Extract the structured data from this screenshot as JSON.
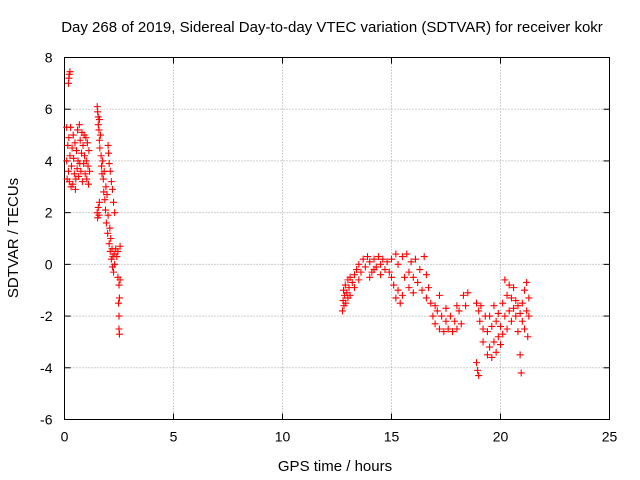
{
  "chart_data": {
    "type": "scatter",
    "title": "Day 268 of 2019, Sidereal Day-to-day VTEC variation (SDTVAR) for receiver kokr",
    "xlabel": "GPS time / hours",
    "ylabel": "SDTVAR / TECUs",
    "xlim": [
      0,
      25
    ],
    "ylim": [
      -6,
      8
    ],
    "xticks": [
      0,
      5,
      10,
      15,
      20,
      25
    ],
    "yticks": [
      -6,
      -4,
      -2,
      0,
      2,
      4,
      6,
      8
    ],
    "xtick_labels": [
      "0",
      "5",
      "10",
      "15",
      "20",
      "25"
    ],
    "ytick_labels": [
      "-6",
      "-4",
      "-2",
      "0",
      "2",
      "4",
      "6",
      "8"
    ],
    "grid": true,
    "marker": "+",
    "color": "#ff0000",
    "series": [
      {
        "name": "SDTVAR",
        "points": [
          [
            0.18,
            7.0
          ],
          [
            0.2,
            7.2
          ],
          [
            0.22,
            7.35
          ],
          [
            0.25,
            7.45
          ],
          [
            0.1,
            5.3
          ],
          [
            0.1,
            4.0
          ],
          [
            0.12,
            3.3
          ],
          [
            0.15,
            4.6
          ],
          [
            0.18,
            3.6
          ],
          [
            0.2,
            4.9
          ],
          [
            0.22,
            3.2
          ],
          [
            0.25,
            4.2
          ],
          [
            0.28,
            5.3
          ],
          [
            0.3,
            3.0
          ],
          [
            0.32,
            3.8
          ],
          [
            0.35,
            4.5
          ],
          [
            0.38,
            3.1
          ],
          [
            0.4,
            5.0
          ],
          [
            0.42,
            4.1
          ],
          [
            0.45,
            3.5
          ],
          [
            0.48,
            4.7
          ],
          [
            0.5,
            2.9
          ],
          [
            0.52,
            3.3
          ],
          [
            0.55,
            4.4
          ],
          [
            0.58,
            3.7
          ],
          [
            0.6,
            5.2
          ],
          [
            0.62,
            4.0
          ],
          [
            0.65,
            3.4
          ],
          [
            0.68,
            5.4
          ],
          [
            0.7,
            3.9
          ],
          [
            0.72,
            4.8
          ],
          [
            0.75,
            3.6
          ],
          [
            0.78,
            4.3
          ],
          [
            0.8,
            5.1
          ],
          [
            0.82,
            3.2
          ],
          [
            0.85,
            4.6
          ],
          [
            0.88,
            3.9
          ],
          [
            0.9,
            5.0
          ],
          [
            0.92,
            4.2
          ],
          [
            0.95,
            3.5
          ],
          [
            0.98,
            4.9
          ],
          [
            1.0,
            4.0
          ],
          [
            1.02,
            3.3
          ],
          [
            1.05,
            4.7
          ],
          [
            1.08,
            3.8
          ],
          [
            1.1,
            3.1
          ],
          [
            1.12,
            4.4
          ],
          [
            1.15,
            3.6
          ],
          [
            1.5,
            6.1
          ],
          [
            1.52,
            5.9
          ],
          [
            1.55,
            5.7
          ],
          [
            1.55,
            5.4
          ],
          [
            1.58,
            5.2
          ],
          [
            1.6,
            5.6
          ],
          [
            1.6,
            4.8
          ],
          [
            1.62,
            4.5
          ],
          [
            1.65,
            5.0
          ],
          [
            1.68,
            4.2
          ],
          [
            1.7,
            3.8
          ],
          [
            1.72,
            3.5
          ],
          [
            1.5,
            2.0
          ],
          [
            1.52,
            1.8
          ],
          [
            1.55,
            2.2
          ],
          [
            1.58,
            1.9
          ],
          [
            1.6,
            2.4
          ],
          [
            1.75,
            4.0
          ],
          [
            1.78,
            3.3
          ],
          [
            1.8,
            2.8
          ],
          [
            1.82,
            3.6
          ],
          [
            1.85,
            2.5
          ],
          [
            1.88,
            2.1
          ],
          [
            1.9,
            3.0
          ],
          [
            1.92,
            1.6
          ],
          [
            1.95,
            2.7
          ],
          [
            1.98,
            1.2
          ],
          [
            2.0,
            1.9
          ],
          [
            2.0,
            4.6
          ],
          [
            2.02,
            4.3
          ],
          [
            2.05,
            3.9
          ],
          [
            2.05,
            0.8
          ],
          [
            2.08,
            1.4
          ],
          [
            2.1,
            0.5
          ],
          [
            2.1,
            3.6
          ],
          [
            2.12,
            1.0
          ],
          [
            2.15,
            0.2
          ],
          [
            2.15,
            3.2
          ],
          [
            2.18,
            0.6
          ],
          [
            2.2,
            -0.1
          ],
          [
            2.2,
            2.9
          ],
          [
            2.22,
            0.3
          ],
          [
            2.25,
            2.4
          ],
          [
            2.25,
            -0.3
          ],
          [
            2.28,
            0.4
          ],
          [
            2.3,
            2.0
          ],
          [
            2.3,
            0.0
          ],
          [
            2.35,
            0.6
          ],
          [
            2.4,
            0.3
          ],
          [
            2.45,
            -0.5
          ],
          [
            2.45,
            0.5
          ],
          [
            2.48,
            -1.5
          ],
          [
            2.5,
            -0.8
          ],
          [
            2.5,
            -2.0
          ],
          [
            2.52,
            -1.3
          ],
          [
            2.5,
            -2.5
          ],
          [
            2.52,
            -2.7
          ],
          [
            2.55,
            0.7
          ],
          [
            2.55,
            -0.6
          ],
          [
            12.75,
            -1.8
          ],
          [
            12.78,
            -1.4
          ],
          [
            12.8,
            -1.0
          ],
          [
            12.82,
            -1.6
          ],
          [
            12.85,
            -1.2
          ],
          [
            12.88,
            -0.8
          ],
          [
            12.9,
            -1.5
          ],
          [
            12.95,
            -1.1
          ],
          [
            13.0,
            -0.6
          ],
          [
            13.0,
            -1.3
          ],
          [
            13.05,
            -0.9
          ],
          [
            13.1,
            -0.5
          ],
          [
            13.1,
            -1.2
          ],
          [
            13.2,
            -0.7
          ],
          [
            13.3,
            -0.4
          ],
          [
            13.3,
            -0.9
          ],
          [
            13.4,
            -0.2
          ],
          [
            13.5,
            -0.6
          ],
          [
            13.5,
            0.0
          ],
          [
            13.6,
            -0.3
          ],
          [
            13.7,
            0.2
          ],
          [
            13.8,
            -0.1
          ],
          [
            13.9,
            0.3
          ],
          [
            14.0,
            0.1
          ],
          [
            14.0,
            -0.5
          ],
          [
            14.1,
            -0.3
          ],
          [
            14.2,
            0.2
          ],
          [
            14.2,
            -0.2
          ],
          [
            14.3,
            -0.1
          ],
          [
            14.4,
            0.3
          ],
          [
            14.5,
            0.0
          ],
          [
            14.5,
            -0.4
          ],
          [
            14.6,
            0.2
          ],
          [
            14.7,
            -0.2
          ],
          [
            14.8,
            0.1
          ],
          [
            14.9,
            -0.3
          ],
          [
            15.0,
            0.2
          ],
          [
            15.0,
            -0.5
          ],
          [
            15.1,
            -0.8
          ],
          [
            15.2,
            0.4
          ],
          [
            15.2,
            -1.3
          ],
          [
            15.3,
            -1.0
          ],
          [
            15.3,
            0.0
          ],
          [
            15.4,
            -1.5
          ],
          [
            15.5,
            0.3
          ],
          [
            15.5,
            -1.2
          ],
          [
            15.6,
            -0.5
          ],
          [
            15.7,
            0.4
          ],
          [
            15.8,
            -0.3
          ],
          [
            15.8,
            -0.9
          ],
          [
            15.9,
            0.1
          ],
          [
            16.0,
            -0.5
          ],
          [
            16.0,
            -1.1
          ],
          [
            16.1,
            0.2
          ],
          [
            16.2,
            -0.7
          ],
          [
            16.3,
            -0.2
          ],
          [
            16.4,
            -1.0
          ],
          [
            16.5,
            0.3
          ],
          [
            16.6,
            -0.4
          ],
          [
            16.6,
            -1.3
          ],
          [
            16.7,
            -0.9
          ],
          [
            16.8,
            -1.5
          ],
          [
            16.9,
            -2.0
          ],
          [
            17.0,
            -1.6
          ],
          [
            17.0,
            -2.3
          ],
          [
            17.1,
            -1.8
          ],
          [
            17.2,
            -2.5
          ],
          [
            17.2,
            -1.2
          ],
          [
            17.3,
            -2.0
          ],
          [
            17.4,
            -2.6
          ],
          [
            17.5,
            -1.7
          ],
          [
            17.5,
            -2.2
          ],
          [
            17.6,
            -2.5
          ],
          [
            17.7,
            -2.0
          ],
          [
            17.8,
            -2.6
          ],
          [
            17.9,
            -2.2
          ],
          [
            18.0,
            -1.6
          ],
          [
            18.0,
            -2.5
          ],
          [
            18.1,
            -1.8
          ],
          [
            18.2,
            -2.3
          ],
          [
            18.3,
            -1.2
          ],
          [
            18.4,
            -1.6
          ],
          [
            18.5,
            -1.1
          ],
          [
            18.9,
            -3.8
          ],
          [
            18.95,
            -4.1
          ],
          [
            19.0,
            -4.3
          ],
          [
            18.9,
            -1.5
          ],
          [
            19.0,
            -1.8
          ],
          [
            19.05,
            -2.2
          ],
          [
            19.1,
            -1.6
          ],
          [
            19.2,
            -2.5
          ],
          [
            19.2,
            -3.0
          ],
          [
            19.3,
            -2.0
          ],
          [
            19.4,
            -3.5
          ],
          [
            19.4,
            -2.6
          ],
          [
            19.5,
            -3.2
          ],
          [
            19.5,
            -2.0
          ],
          [
            19.6,
            -3.6
          ],
          [
            19.6,
            -2.4
          ],
          [
            19.7,
            -3.0
          ],
          [
            19.7,
            -1.6
          ],
          [
            19.8,
            -3.4
          ],
          [
            19.8,
            -2.2
          ],
          [
            19.9,
            -2.8
          ],
          [
            19.9,
            -1.9
          ],
          [
            20.0,
            -3.1
          ],
          [
            20.0,
            -2.4
          ],
          [
            20.1,
            -1.5
          ],
          [
            20.1,
            -2.7
          ],
          [
            20.2,
            -2.0
          ],
          [
            20.2,
            -0.6
          ],
          [
            20.3,
            -1.2
          ],
          [
            20.3,
            -2.5
          ],
          [
            20.4,
            -0.8
          ],
          [
            20.4,
            -1.8
          ],
          [
            20.5,
            -1.3
          ],
          [
            20.5,
            -2.2
          ],
          [
            20.6,
            -1.7
          ],
          [
            20.6,
            -0.9
          ],
          [
            20.7,
            -2.0
          ],
          [
            20.7,
            -1.4
          ],
          [
            20.8,
            -2.6
          ],
          [
            20.8,
            -1.6
          ],
          [
            20.9,
            -1.9
          ],
          [
            20.9,
            -3.5
          ],
          [
            20.95,
            -4.2
          ],
          [
            21.0,
            -1.5
          ],
          [
            21.0,
            -2.2
          ],
          [
            21.1,
            -1.0
          ],
          [
            21.1,
            -2.5
          ],
          [
            21.2,
            -0.7
          ],
          [
            21.2,
            -1.8
          ],
          [
            21.25,
            -2.8
          ],
          [
            21.3,
            -1.3
          ],
          [
            21.3,
            -2.0
          ]
        ]
      }
    ]
  }
}
